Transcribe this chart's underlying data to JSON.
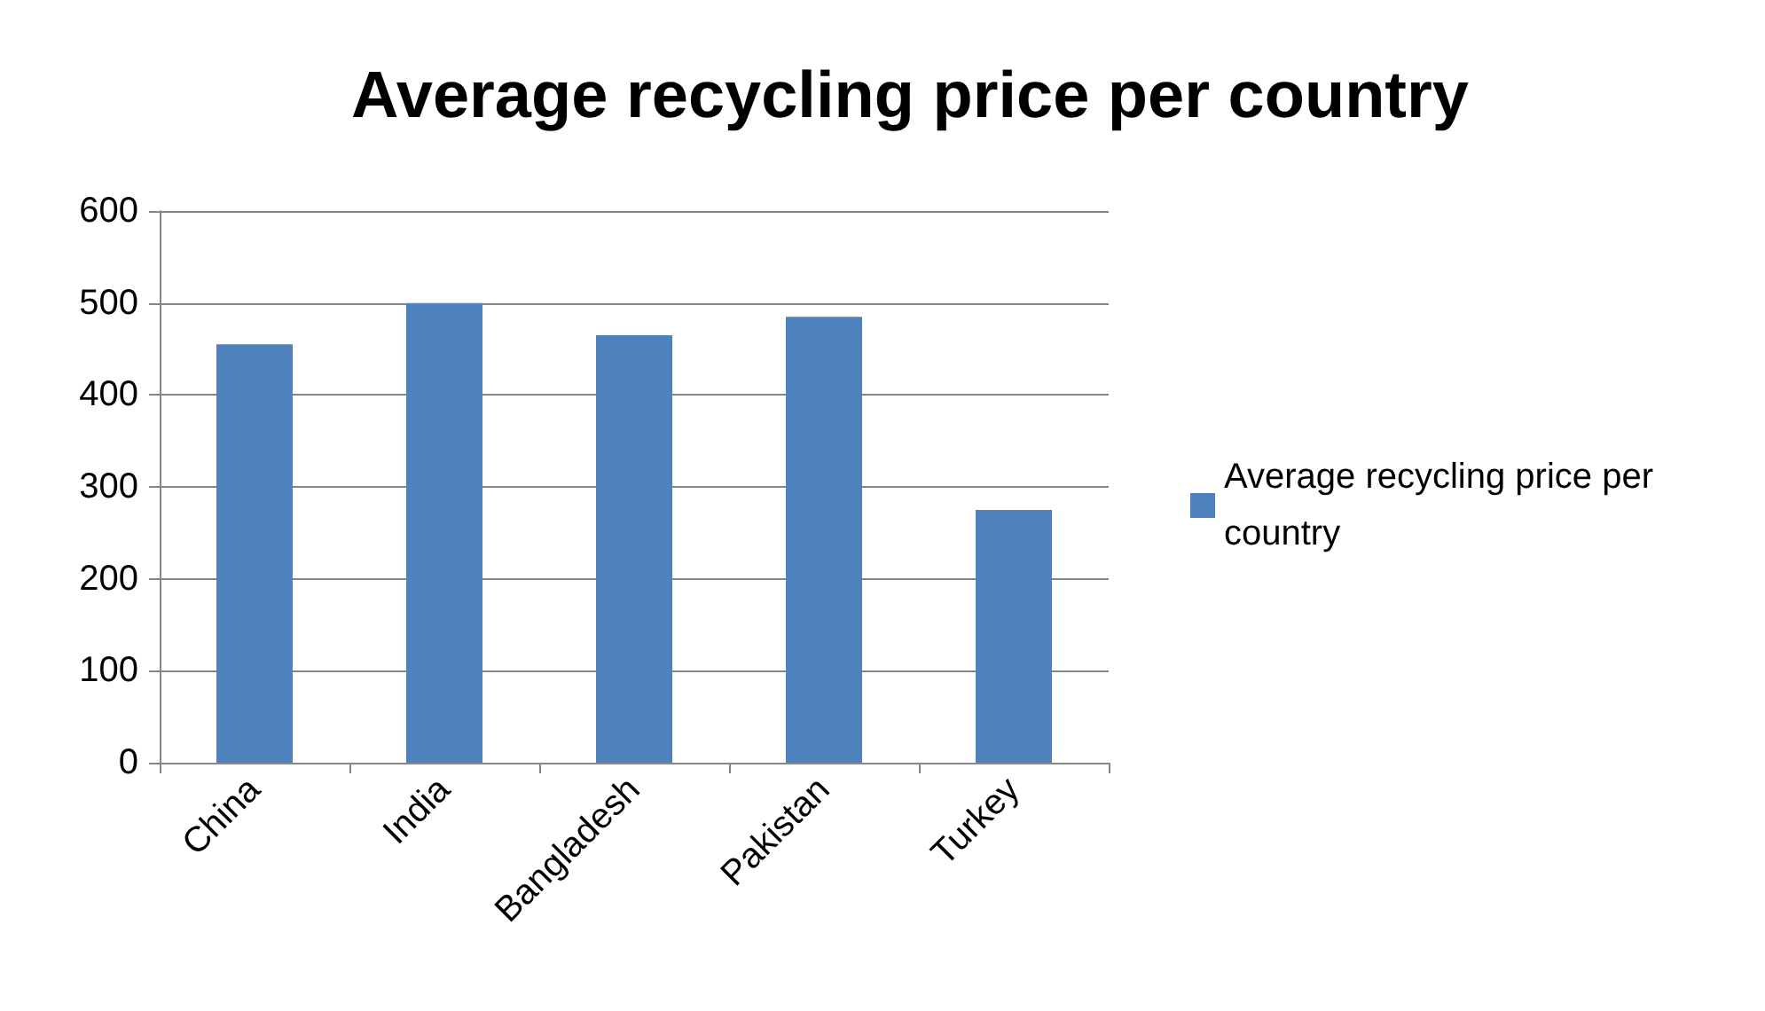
{
  "chart_data": {
    "type": "bar",
    "title": "Average recycling price per country",
    "categories": [
      "China",
      "India",
      "Bangladesh",
      "Pakistan",
      "Turkey"
    ],
    "series": [
      {
        "name": "Average recycling price per country",
        "color": "#4f81bd",
        "values": [
          455,
          500,
          465,
          485,
          275
        ]
      }
    ],
    "ylim": [
      0,
      600
    ],
    "yticks": [
      0,
      100,
      200,
      300,
      400,
      500,
      600
    ],
    "grid": "y",
    "legend": "right"
  }
}
